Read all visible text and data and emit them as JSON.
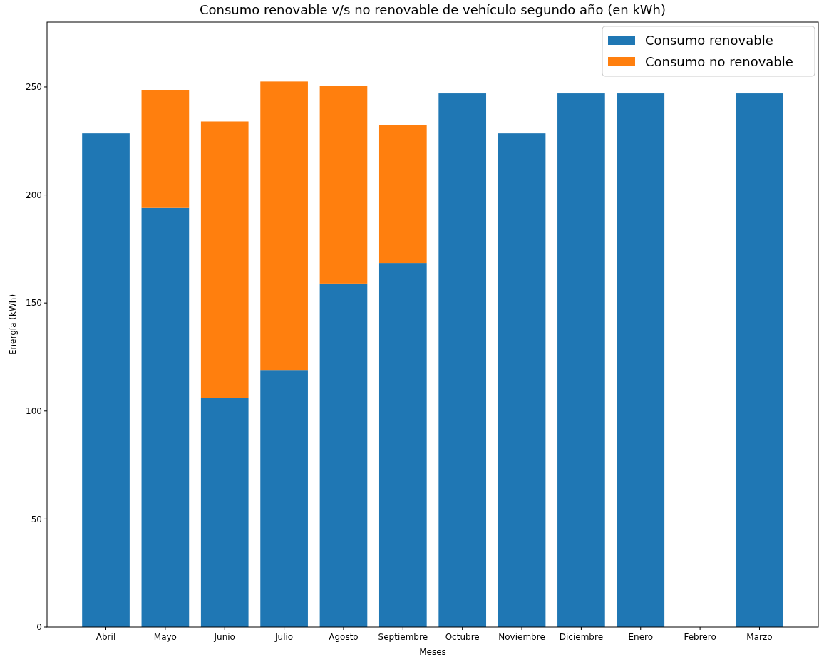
{
  "chart_data": {
    "type": "bar",
    "title": "Consumo renovable v/s no renovable de vehículo segundo año (en kWh)",
    "xlabel": "Meses",
    "ylabel": "Energía (kWh)",
    "categories": [
      "Abril",
      "Mayo",
      "Junio",
      "Julio",
      "Agosto",
      "Septiembre",
      "Octubre",
      "Noviembre",
      "Diciembre",
      "Enero",
      "Febrero",
      "Marzo"
    ],
    "stacked": true,
    "series": [
      {
        "name": "Consumo renovable",
        "color": "#1f77b4",
        "values": [
          228.5,
          194,
          106,
          119,
          159,
          168.5,
          247,
          228.5,
          247,
          247,
          0,
          247
        ]
      },
      {
        "name": "Consumo no renovable",
        "color": "#ff7f0e",
        "values": [
          0,
          54.5,
          128,
          133.5,
          91.5,
          64,
          0,
          0,
          0,
          0,
          0,
          0
        ]
      }
    ],
    "ylim": [
      0,
      280
    ],
    "yticks": [
      0,
      50,
      100,
      150,
      200,
      250
    ],
    "grid": false,
    "legend": "top right"
  }
}
